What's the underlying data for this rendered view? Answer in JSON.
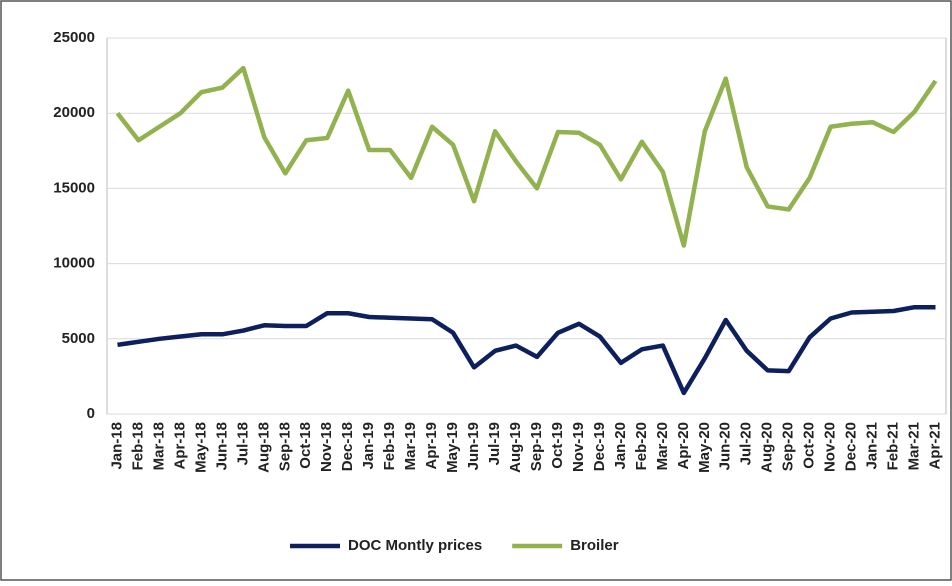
{
  "chart_data": {
    "type": "line",
    "categories": [
      "Jan-18",
      "Feb-18",
      "Mar-18",
      "Apr-18",
      "May-18",
      "Jun-18",
      "Jul-18",
      "Aug-18",
      "Sep-18",
      "Oct-18",
      "Nov-18",
      "Dec-18",
      "Jan-19",
      "Feb-19",
      "Mar-19",
      "Apr-19",
      "May-19",
      "Jun-19",
      "Jul-19",
      "Aug-19",
      "Sep-19",
      "Oct-19",
      "Nov-19",
      "Dec-19",
      "Jan-20",
      "Feb-20",
      "Mar-20",
      "Apr-20",
      "May-20",
      "Jun-20",
      "Jul-20",
      "Aug-20",
      "Sep-20",
      "Oct-20",
      "Nov-20",
      "Dec-20",
      "Jan-21",
      "Feb-21",
      "Mar-21",
      "Apr-21"
    ],
    "series": [
      {
        "name": "DOC Montly prices",
        "color": "#0d1f5c",
        "values": [
          4600,
          4800,
          5000,
          5150,
          5300,
          5300,
          5550,
          5900,
          5850,
          5850,
          6700,
          6700,
          6450,
          6400,
          6350,
          6300,
          5400,
          3100,
          4200,
          4550,
          3800,
          5400,
          6000,
          5150,
          3400,
          4300,
          4550,
          1400,
          3700,
          6250,
          4200,
          2900,
          2850,
          5100,
          6350,
          6750,
          6800,
          6850,
          7100,
          7100
        ]
      },
      {
        "name": "Broiler",
        "color": "#92b24f",
        "values": [
          20000,
          18200,
          19100,
          20000,
          21400,
          21700,
          23000,
          18400,
          16000,
          18200,
          18350,
          21500,
          17550,
          17550,
          15700,
          19100,
          17900,
          14150,
          18800,
          16800,
          15000,
          18750,
          18700,
          17900,
          15600,
          18100,
          16100,
          11200,
          18800,
          22300,
          16400,
          13800,
          13600,
          15700,
          19100,
          19300,
          19400,
          18750,
          20100,
          22150
        ]
      }
    ],
    "ylim": [
      0,
      25000
    ],
    "yticks": [
      0,
      5000,
      10000,
      15000,
      20000,
      25000
    ],
    "grid": true,
    "legend": "bottom"
  }
}
